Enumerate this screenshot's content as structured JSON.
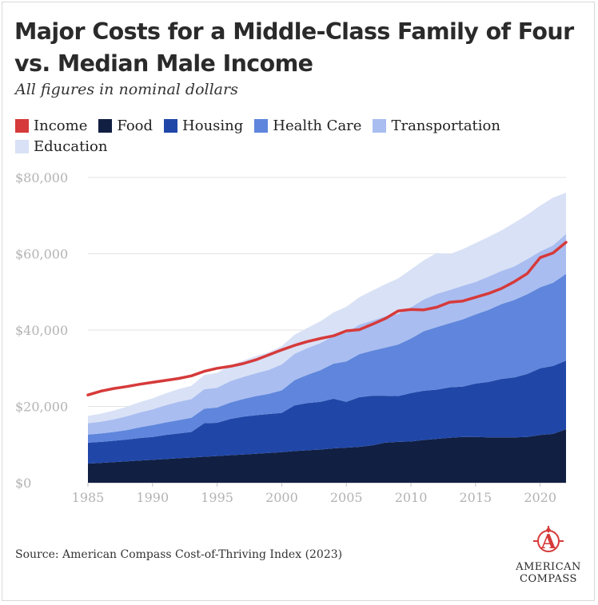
{
  "title": "Major Costs for a Middle-Class Family of Four vs. Median Male Income",
  "subtitle": "All figures in nominal dollars",
  "source": "Source: American Compass Cost-of-Thriving Index (2023)",
  "logo": {
    "line1": "AMERICAN",
    "line2": "COMPASS",
    "monogram": "A",
    "color": "#d63a3a"
  },
  "colors": {
    "Income": "#d63a3a",
    "Food": "#111f42",
    "Housing": "#2047a8",
    "Health Care": "#5f86dc",
    "Transportation": "#a9bdf0",
    "Education": "#d9e1f6"
  },
  "chart_data": {
    "type": "area",
    "stacked": true,
    "title": "Major Costs for a Middle-Class Family of Four vs. Median Male Income",
    "subtitle": "All figures in nominal dollars",
    "xlabel": "",
    "ylabel": "",
    "xlim": [
      1985,
      2022
    ],
    "ylim": [
      0,
      80000
    ],
    "xticks": [
      1985,
      1990,
      1995,
      2000,
      2005,
      2010,
      2015,
      2020
    ],
    "xtick_labels": [
      "1985",
      "1990",
      "1995",
      "2000",
      "2005",
      "2010",
      "2015",
      "2020"
    ],
    "yticks": [
      0,
      20000,
      40000,
      60000,
      80000
    ],
    "ytick_labels": [
      "$0",
      "$20,000",
      "$40,000",
      "$60,000",
      "$80,000"
    ],
    "grid": "horizontal",
    "legend_position": "top-left",
    "legend": [
      "Income",
      "Food",
      "Housing",
      "Health Care",
      "Transportation",
      "Education"
    ],
    "x": [
      1985,
      1986,
      1987,
      1988,
      1989,
      1990,
      1991,
      1992,
      1993,
      1994,
      1995,
      1996,
      1997,
      1998,
      1999,
      2000,
      2001,
      2002,
      2003,
      2004,
      2005,
      2006,
      2007,
      2008,
      2009,
      2010,
      2011,
      2012,
      2013,
      2014,
      2015,
      2016,
      2017,
      2018,
      2019,
      2020,
      2021,
      2022
    ],
    "stacked_series": [
      {
        "name": "Food",
        "values": [
          5000,
          5200,
          5400,
          5600,
          5800,
          6000,
          6200,
          6400,
          6600,
          6800,
          7000,
          7200,
          7400,
          7600,
          7800,
          8000,
          8300,
          8500,
          8700,
          9000,
          9200,
          9400,
          9800,
          10500,
          10700,
          10800,
          11200,
          11500,
          11800,
          12000,
          12000,
          11900,
          11900,
          11900,
          12000,
          12500,
          12800,
          14000
        ]
      },
      {
        "name": "Housing",
        "values": [
          5500,
          5500,
          5600,
          5700,
          5900,
          6000,
          6300,
          6500,
          6700,
          8800,
          8700,
          9500,
          9900,
          10100,
          10200,
          10300,
          12000,
          12400,
          12500,
          13000,
          12000,
          13000,
          13000,
          12300,
          12000,
          12700,
          12900,
          12900,
          13200,
          13200,
          14000,
          14500,
          15300,
          15700,
          16500,
          17500,
          17800,
          18000
        ]
      },
      {
        "name": "Health Care",
        "values": [
          2100,
          2200,
          2300,
          2500,
          2800,
          3100,
          3300,
          3500,
          3700,
          3800,
          4000,
          4300,
          4600,
          5000,
          5300,
          5900,
          6600,
          7400,
          8300,
          9200,
          10600,
          11300,
          11800,
          12600,
          13500,
          14300,
          15600,
          16400,
          16800,
          17600,
          18100,
          18900,
          19600,
          20300,
          20900,
          21200,
          21800,
          22700
        ]
      },
      {
        "name": "Transportation",
        "values": [
          3000,
          3100,
          3300,
          3600,
          3900,
          4100,
          4500,
          4800,
          4900,
          5100,
          5200,
          5600,
          5800,
          6000,
          6300,
          6800,
          6900,
          7000,
          7100,
          7300,
          7500,
          7700,
          7900,
          8200,
          8000,
          8200,
          8300,
          8700,
          8700,
          8800,
          8500,
          8700,
          8700,
          8800,
          9200,
          9400,
          9800,
          10500
        ]
      },
      {
        "name": "Education",
        "values": [
          1900,
          2100,
          2300,
          2500,
          2700,
          2900,
          3100,
          3300,
          3500,
          3700,
          3900,
          4100,
          4300,
          4500,
          4600,
          4800,
          5000,
          5300,
          5700,
          6100,
          6800,
          7200,
          7800,
          8400,
          9300,
          9900,
          10300,
          10700,
          9400,
          9600,
          10200,
          10400,
          10600,
          11400,
          11600,
          12000,
          12500,
          10800
        ]
      }
    ],
    "line_series": [
      {
        "name": "Income",
        "values": [
          23000,
          24000,
          24700,
          25200,
          25800,
          26300,
          26800,
          27300,
          28000,
          29200,
          30000,
          30500,
          31200,
          32200,
          33500,
          34800,
          36000,
          37000,
          37800,
          38500,
          39800,
          40100,
          41500,
          43000,
          45000,
          45400,
          45300,
          46000,
          47300,
          47600,
          48600,
          49600,
          50900,
          52700,
          54800,
          59000,
          60200,
          63000
        ]
      }
    ]
  }
}
